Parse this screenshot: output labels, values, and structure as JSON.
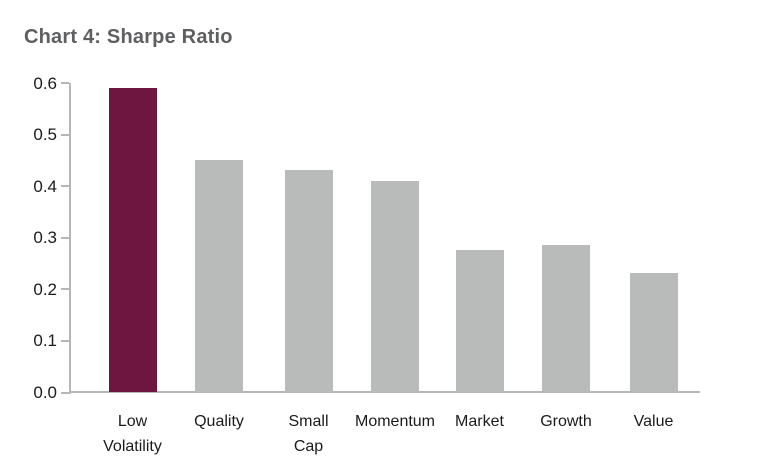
{
  "page": {
    "heading": "Chart 4: Sharpe Ratio"
  },
  "chart_data": {
    "type": "bar",
    "title": "Chart 4: Sharpe Ratio",
    "xlabel": "",
    "ylabel": "",
    "categories": [
      "Low Volatility",
      "Quality",
      "Small Cap",
      "Momentum",
      "Market",
      "Growth",
      "Value"
    ],
    "values": [
      0.59,
      0.45,
      0.43,
      0.41,
      0.275,
      0.285,
      0.23
    ],
    "ylim": [
      0.0,
      0.6
    ],
    "y_tick_labels": [
      "0.0",
      "0.1",
      "0.2",
      "0.3",
      "0.4",
      "0.5",
      "0.6"
    ],
    "grid": "off",
    "legend": "none",
    "highlight_index": 0,
    "colors": {
      "highlight_bar": "#6E1540",
      "default_bar": "#B9BABA",
      "axis": "#B4B6B8",
      "tick_text": "#1B1B1B",
      "title_text": "#5E5F61"
    }
  }
}
